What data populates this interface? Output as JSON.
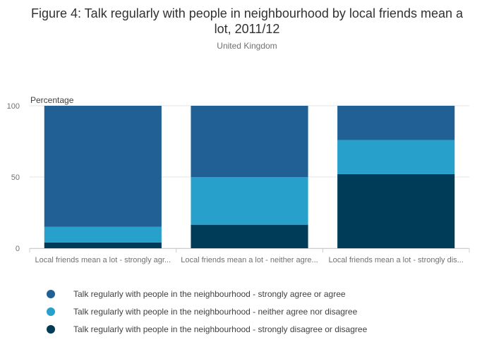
{
  "chart_data": {
    "type": "bar",
    "stacked": true,
    "title": "Figure 4: Talk regularly with people in neighbourhood by local friends mean a lot, 2011/12",
    "subtitle": "United Kingdom",
    "ylabel": "Percentage",
    "xlabel": "",
    "ylim": [
      0,
      100
    ],
    "yticks": [
      0,
      50,
      100
    ],
    "categories": [
      "Local friends mean a lot - strongly agr...",
      "Local friends mean a lot - neither agre...",
      "Local friends mean a lot - strongly dis..."
    ],
    "series": [
      {
        "name": "Talk regularly with people in the neighbourhood - strongly disagree or disagree",
        "color": "#003c57",
        "values": [
          4,
          16.5,
          52
        ]
      },
      {
        "name": "Talk regularly with people in the neighbourhood - neither agree nor disagree",
        "color": "#27a0cc",
        "values": [
          11,
          33.5,
          24
        ]
      },
      {
        "name": "Talk regularly with people in the neighbourhood - strongly agree or agree",
        "color": "#206095",
        "values": [
          85,
          50,
          24
        ]
      }
    ],
    "legend_position": "bottom",
    "grid": true
  },
  "legend": [
    {
      "label": "Talk regularly with people in the neighbourhood - strongly agree or agree",
      "color": "#206095"
    },
    {
      "label": "Talk regularly with people in the neighbourhood - neither agree nor disagree",
      "color": "#27a0cc"
    },
    {
      "label": "Talk regularly with people in the neighbourhood - strongly disagree or disagree",
      "color": "#003c57"
    }
  ]
}
